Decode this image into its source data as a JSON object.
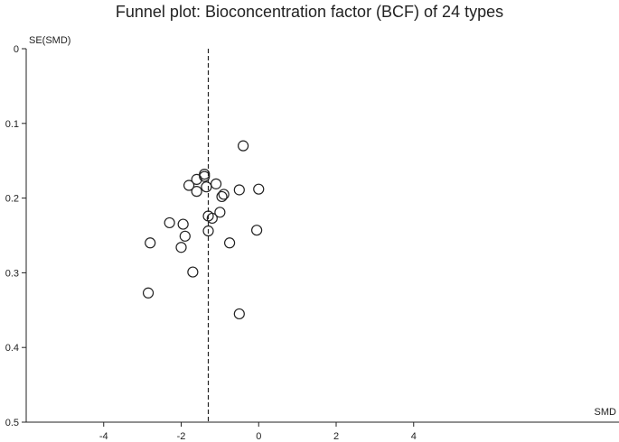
{
  "chart_data": {
    "type": "scatter",
    "title": "Funnel plot: Bioconcentration factor (BCF) of 24 types",
    "xlabel": "SMD",
    "ylabel": "SE(SMD)",
    "xlim": [
      -6,
      9.3
    ],
    "ylim": [
      0,
      0.5
    ],
    "y_reversed": true,
    "xticks": [
      -4,
      -2,
      0,
      2,
      4
    ],
    "xtick_labels": [
      "-4",
      "-2",
      "0",
      "2",
      "4"
    ],
    "yticks": [
      0,
      0.1,
      0.2,
      0.3,
      0.4,
      0.5
    ],
    "ytick_labels": [
      "0",
      "0.1",
      "0.2",
      "0.3",
      "0.4",
      "0.5"
    ],
    "reference_line": {
      "x": -1.3,
      "style": "dashed"
    },
    "grid": false,
    "points": [
      {
        "x": -0.4,
        "y": 0.13
      },
      {
        "x": -1.4,
        "y": 0.168
      },
      {
        "x": -1.4,
        "y": 0.171
      },
      {
        "x": -1.6,
        "y": 0.175
      },
      {
        "x": -1.8,
        "y": 0.183
      },
      {
        "x": -1.1,
        "y": 0.181
      },
      {
        "x": -1.35,
        "y": 0.185
      },
      {
        "x": -1.6,
        "y": 0.191
      },
      {
        "x": -0.5,
        "y": 0.189
      },
      {
        "x": 0.0,
        "y": 0.188
      },
      {
        "x": -0.9,
        "y": 0.195
      },
      {
        "x": -0.95,
        "y": 0.198
      },
      {
        "x": -1.0,
        "y": 0.219
      },
      {
        "x": -1.2,
        "y": 0.227
      },
      {
        "x": -1.3,
        "y": 0.224
      },
      {
        "x": -2.3,
        "y": 0.233
      },
      {
        "x": -1.95,
        "y": 0.235
      },
      {
        "x": -0.05,
        "y": 0.243
      },
      {
        "x": -1.3,
        "y": 0.244
      },
      {
        "x": -1.9,
        "y": 0.251
      },
      {
        "x": -2.8,
        "y": 0.26
      },
      {
        "x": -0.75,
        "y": 0.26
      },
      {
        "x": -2.0,
        "y": 0.266
      },
      {
        "x": -1.7,
        "y": 0.299
      },
      {
        "x": -2.85,
        "y": 0.327
      },
      {
        "x": -0.5,
        "y": 0.355
      }
    ]
  }
}
